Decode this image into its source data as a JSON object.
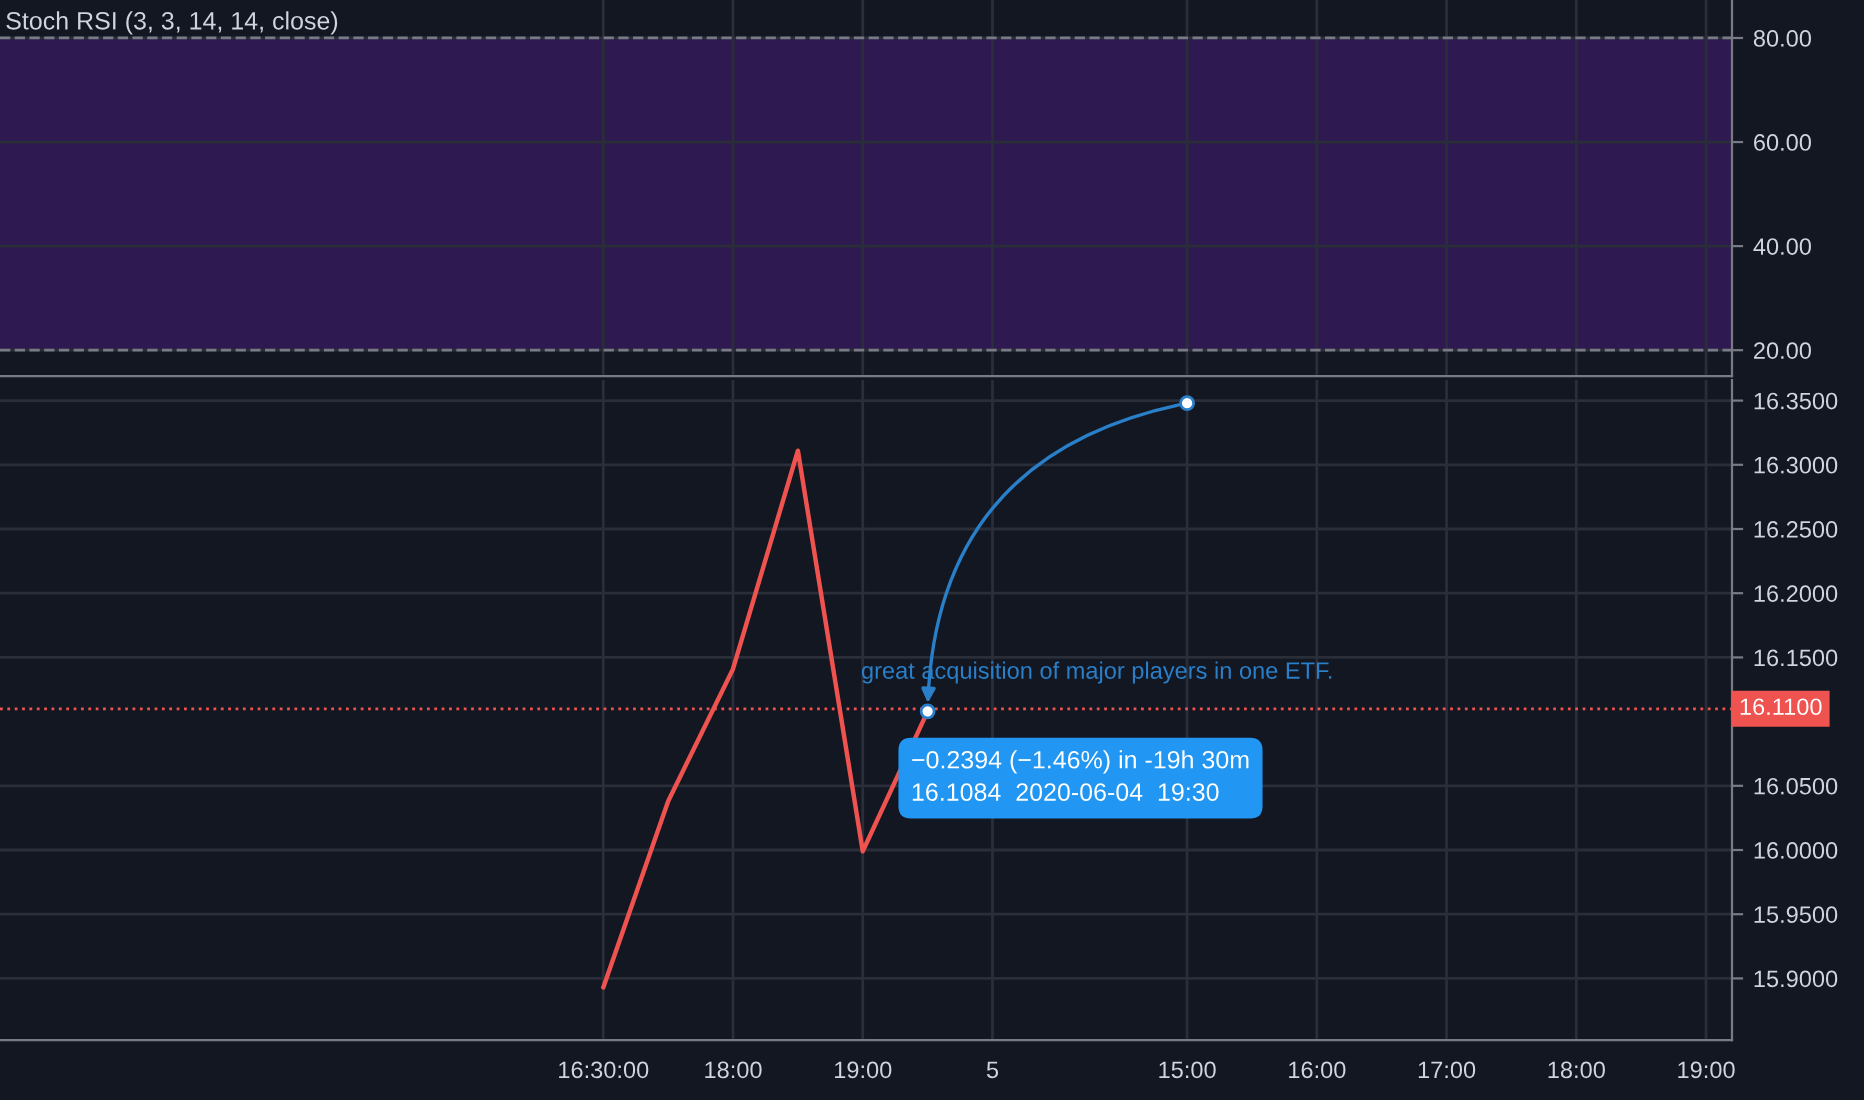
{
  "chart_data": [
    {
      "type": "line",
      "title": "Stoch RSI (3, 3, 14, 14, close)",
      "categories": [
        null,
        null,
        null,
        null,
        null,
        null,
        null,
        null,
        null,
        null,
        null,
        null,
        null,
        null,
        null,
        null,
        null,
        null,
        null,
        null,
        null,
        null,
        null,
        null,
        null,
        null,
        null
      ],
      "ylim": [
        15,
        87.3
      ],
      "yticks": [
        {
          "value": 20,
          "label": "20.00"
        },
        {
          "value": 40,
          "label": "40.00"
        },
        {
          "value": 60,
          "label": "60.00"
        },
        {
          "value": 80,
          "label": "80.00"
        }
      ],
      "tick_labels": "y",
      "grid": true,
      "bands": [
        {
          "axis": "y",
          "from": 20,
          "to": 80,
          "color": "#2e1950"
        }
      ]
    },
    {
      "type": "line",
      "categories": [
        null,
        null,
        null,
        null,
        null,
        null,
        null,
        null,
        null,
        "16:30:00",
        null,
        "18:00",
        null,
        "19:00",
        null,
        "5",
        null,
        null,
        "15:00",
        null,
        "16:00",
        null,
        "17:00",
        null,
        "18:00",
        null,
        "19:00"
      ],
      "ylim": [
        15.852,
        16.366
      ],
      "yticks": [
        {
          "value": 15.9,
          "label": "15.9000"
        },
        {
          "value": 15.95,
          "label": "15.9500"
        },
        {
          "value": 16.0,
          "label": "16.0000"
        },
        {
          "value": 16.05,
          "label": "16.0500"
        },
        {
          "value": 16.15,
          "label": "16.1500"
        },
        {
          "value": 16.2,
          "label": "16.2000"
        },
        {
          "value": 16.25,
          "label": "16.2500"
        },
        {
          "value": 16.3,
          "label": "16.3000"
        },
        {
          "value": 16.35,
          "label": "16.3500"
        }
      ],
      "grid": true,
      "series": [
        {
          "color": "#ef5350",
          "values": [
            null,
            null,
            null,
            null,
            null,
            null,
            null,
            null,
            null,
            15.893,
            16.038,
            16.141,
            16.311,
            15.999,
            16.108,
            null,
            null,
            null,
            null,
            null,
            null,
            null,
            null,
            null,
            null,
            null,
            null
          ]
        },
        {
          "type": "scatter",
          "color": "#2a7fc9",
          "marker": "circle",
          "values": [
            null,
            null,
            null,
            null,
            null,
            null,
            null,
            null,
            null,
            null,
            null,
            null,
            null,
            null,
            16.108,
            null,
            null,
            null,
            16.348,
            null,
            null,
            null,
            null,
            null,
            null,
            null,
            null
          ]
        }
      ],
      "ref_lines": [
        {
          "axis": "y",
          "value": 16.11,
          "label": "16.1100",
          "color": "#ef5350",
          "line_style": "dotted"
        }
      ],
      "annotations": [
        {
          "text": "great acquisition of major players in one ETF.",
          "y": 16.108
        },
        {
          "text": "−0.2394 (−1.46%) in -19h 30m\n16.1084  2020-06-04  19:30",
          "y": 16.108
        }
      ]
    }
  ]
}
